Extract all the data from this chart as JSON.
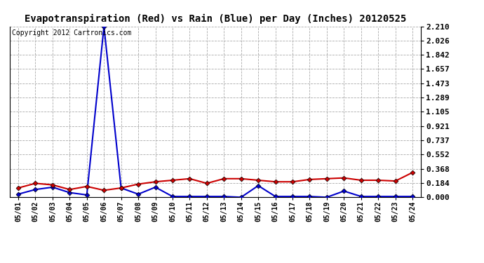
{
  "title": "Evapotranspiration (Red) vs Rain (Blue) per Day (Inches) 20120525",
  "copyright_text": "Copyright 2012 Cartronics.com",
  "x_labels": [
    "05/01",
    "05/02",
    "05/03",
    "05/04",
    "05/05",
    "05/06",
    "05/07",
    "05/08",
    "05/09",
    "05/10",
    "05/11",
    "05/12",
    "05/13",
    "05/14",
    "05/15",
    "05/16",
    "05/17",
    "05/18",
    "05/19",
    "05/20",
    "05/21",
    "05/22",
    "05/23",
    "05/24"
  ],
  "et_red": [
    0.12,
    0.18,
    0.16,
    0.1,
    0.14,
    0.09,
    0.12,
    0.17,
    0.2,
    0.22,
    0.24,
    0.18,
    0.24,
    0.24,
    0.22,
    0.2,
    0.2,
    0.23,
    0.24,
    0.25,
    0.22,
    0.22,
    0.21,
    0.32
  ],
  "rain_blue": [
    0.04,
    0.1,
    0.13,
    0.06,
    0.03,
    2.21,
    0.12,
    0.04,
    0.13,
    0.01,
    0.01,
    0.01,
    0.01,
    0.0,
    0.15,
    0.01,
    0.01,
    0.01,
    0.0,
    0.08,
    0.01,
    0.01,
    0.01,
    0.01
  ],
  "ylim": [
    0.0,
    2.21
  ],
  "yticks": [
    0.0,
    0.184,
    0.368,
    0.552,
    0.737,
    0.921,
    1.105,
    1.289,
    1.473,
    1.657,
    1.842,
    2.026,
    2.21
  ],
  "et_color": "#cc0000",
  "rain_color": "#0000cc",
  "bg_color": "#ffffff",
  "plot_bg_color": "#ffffff",
  "grid_color": "#aaaaaa",
  "title_fontsize": 10,
  "copyright_fontsize": 7
}
